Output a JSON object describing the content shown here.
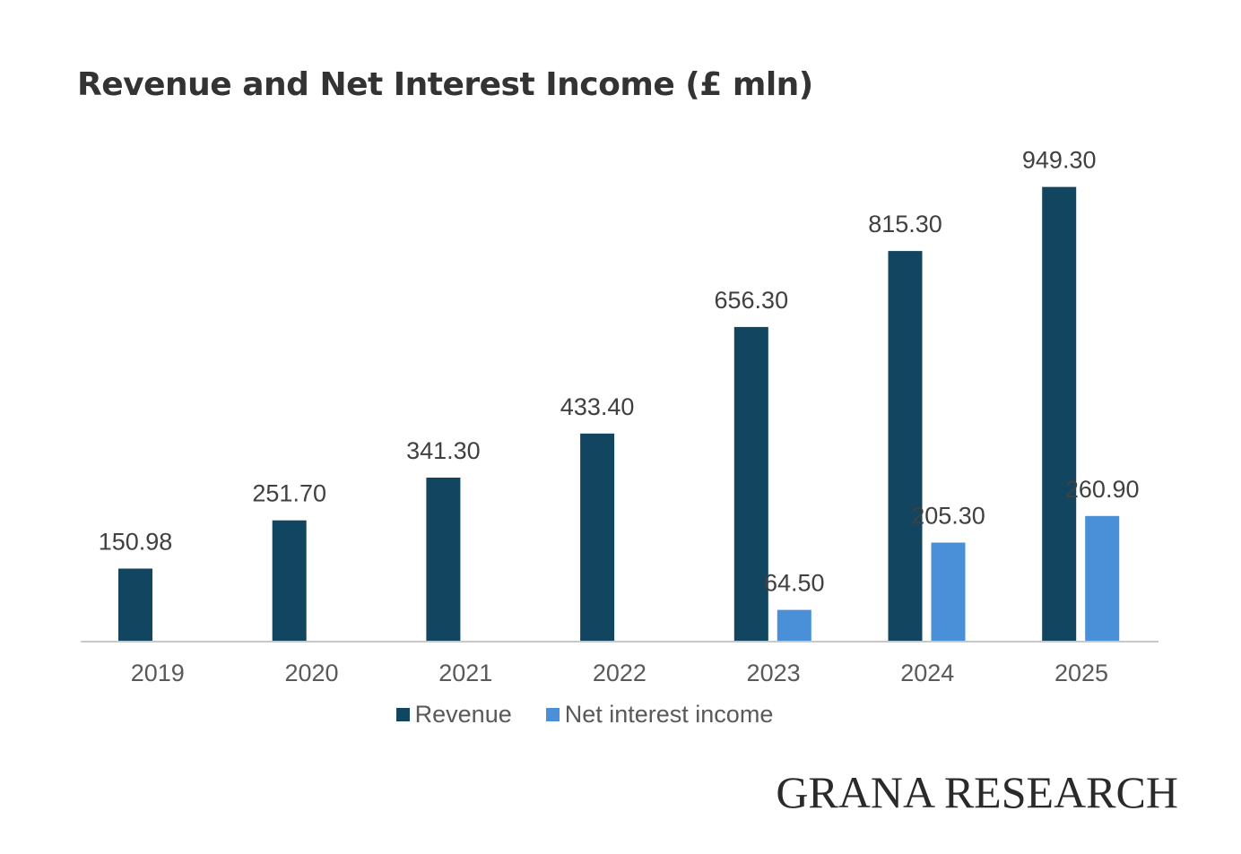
{
  "chart_data": {
    "type": "bar",
    "title": "Revenue and Net Interest Income (£ mln)",
    "xlabel": "",
    "ylabel": "",
    "ylim": [
      0,
      1000
    ],
    "grid": false,
    "legend_position": "bottom",
    "categories": [
      "2019",
      "2020",
      "2021",
      "2022",
      "2023",
      "2024",
      "2025"
    ],
    "series": [
      {
        "name": "Revenue",
        "color": "#12455f",
        "values": [
          150.98,
          251.7,
          341.3,
          433.4,
          656.3,
          815.3,
          949.3
        ],
        "labels": [
          "150.98",
          "251.70",
          "341.30",
          "433.40",
          "656.30",
          "815.30",
          "949.30"
        ]
      },
      {
        "name": "Net interest income",
        "color": "#4a90d9",
        "values": [
          null,
          null,
          null,
          null,
          64.5,
          205.3,
          260.9
        ],
        "labels": [
          null,
          null,
          null,
          null,
          "64.50",
          "205.30",
          "260.90"
        ]
      }
    ]
  },
  "watermark": "GRANA RESEARCH",
  "axis_color": "#c8c8c8"
}
